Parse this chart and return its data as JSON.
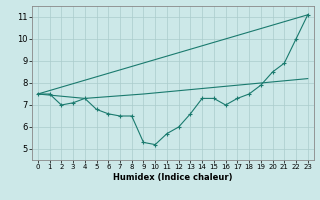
{
  "title": "",
  "xlabel": "Humidex (Indice chaleur)",
  "background_color": "#cce8e8",
  "grid_color": "#aacccc",
  "line_color": "#1a7a6e",
  "xlim": [
    -0.5,
    23.5
  ],
  "ylim": [
    4.5,
    11.5
  ],
  "yticks": [
    5,
    6,
    7,
    8,
    9,
    10,
    11
  ],
  "xticks": [
    0,
    1,
    2,
    3,
    4,
    5,
    6,
    7,
    8,
    9,
    10,
    11,
    12,
    13,
    14,
    15,
    16,
    17,
    18,
    19,
    20,
    21,
    22,
    23
  ],
  "series": [
    {
      "x": [
        0,
        23
      ],
      "y": [
        7.5,
        11.1
      ],
      "marker": false
    },
    {
      "x": [
        0,
        4,
        9,
        23
      ],
      "y": [
        7.5,
        7.3,
        7.5,
        8.2
      ],
      "marker": false
    },
    {
      "x": [
        0,
        1,
        2,
        3,
        4,
        5,
        6,
        7,
        8,
        9,
        10,
        11,
        12,
        13,
        14,
        15,
        16,
        17,
        18,
        19,
        20,
        21,
        22,
        23
      ],
      "y": [
        7.5,
        7.5,
        7.0,
        7.1,
        7.3,
        6.8,
        6.6,
        6.5,
        6.5,
        5.3,
        5.2,
        5.7,
        6.0,
        6.6,
        7.3,
        7.3,
        7.0,
        7.3,
        7.5,
        7.9,
        8.5,
        8.9,
        10.0,
        11.1
      ],
      "marker": true
    }
  ]
}
